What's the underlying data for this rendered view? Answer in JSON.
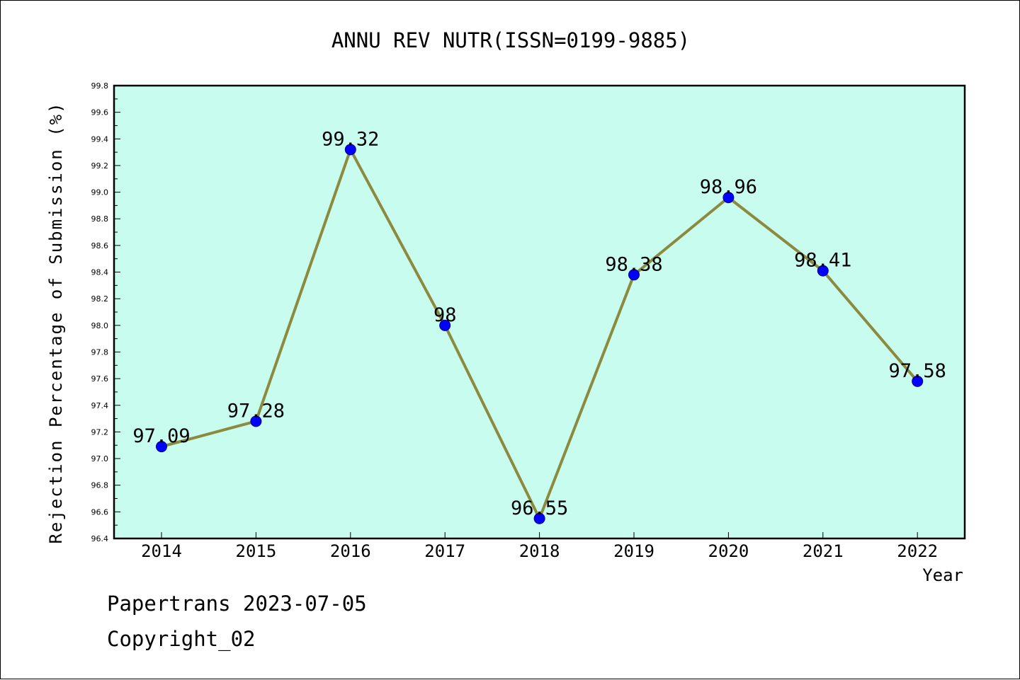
{
  "chart_data": {
    "type": "line",
    "title": "ANNU REV NUTR(ISSN=0199-9885)",
    "xlabel": "Year",
    "ylabel": "Rejection Percentage of Submission (%)",
    "categories": [
      "2014",
      "2015",
      "2016",
      "2017",
      "2018",
      "2019",
      "2020",
      "2021",
      "2022"
    ],
    "series": [
      {
        "values": [
          97.09,
          97.28,
          99.32,
          98.0,
          96.55,
          98.38,
          98.96,
          98.41,
          97.58
        ],
        "labels": [
          "97.09",
          "97.28",
          "99.32",
          "98",
          "96.55",
          "98.38",
          "98.96",
          "98.41",
          "97.58"
        ]
      }
    ],
    "ylim": [
      96.4,
      99.8
    ],
    "yticks": [
      "96.4",
      "96.6",
      "96.8",
      "97.0",
      "97.2",
      "97.4",
      "97.6",
      "97.8",
      "98.0",
      "98.2",
      "98.4",
      "98.6",
      "98.8",
      "99.0",
      "99.2",
      "99.4",
      "99.6",
      "99.8"
    ],
    "grid": false,
    "legend": "none",
    "colors": {
      "plot_background": "#c8fcee",
      "line": "#8b8a3e",
      "marker": "#0000ff",
      "marker_edge": "#00008b"
    }
  },
  "footer": {
    "date_line": "Papertrans 2023-07-05",
    "copyright": "Copyright_02"
  }
}
